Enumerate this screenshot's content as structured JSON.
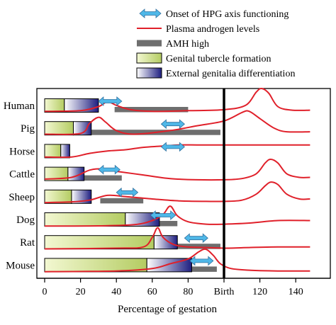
{
  "legend": [
    {
      "symbol": "double-arrow",
      "label": "Onset of HPG axis functioning"
    },
    {
      "symbol": "red-line",
      "label": "Plasma androgen levels"
    },
    {
      "symbol": "gray-bar",
      "label": "AMH high"
    },
    {
      "symbol": "green-gradient-bar",
      "label": "Genital tubercle formation"
    },
    {
      "symbol": "blue-gradient-bar",
      "label": "External genitalia differentiation"
    }
  ],
  "chart_data": {
    "type": "timeline",
    "xlabel": "Percentage of gestation",
    "x_ticks": [
      "0",
      "20",
      "40",
      "60",
      "80",
      "Birth",
      "120",
      "140"
    ],
    "x_tick_values": [
      0,
      20,
      40,
      60,
      80,
      100,
      120,
      140
    ],
    "xlim": [
      0,
      150
    ],
    "birth_line_x": 100,
    "colors": {
      "androgen": "#e0202a",
      "amh": "#6e6e6e",
      "hpg_arrow": "#4fb8e8",
      "tubercle_start": "#f3f8d2",
      "tubercle_end": "#b4cc62",
      "diff_start": "#ffffff",
      "diff_end": "#1e1e80"
    },
    "species": [
      {
        "name": "Human",
        "tubercle": [
          0,
          11
        ],
        "differentiation": [
          11,
          30
        ],
        "amh": [
          39,
          80
        ],
        "hpg_onset": [
          30,
          43
        ],
        "androgen": [
          [
            0,
            0.05
          ],
          [
            20,
            0.08
          ],
          [
            30,
            0.25
          ],
          [
            35,
            0.45
          ],
          [
            40,
            0.3
          ],
          [
            48,
            0.12
          ],
          [
            60,
            0.05
          ],
          [
            80,
            0.08
          ],
          [
            100,
            0.12
          ],
          [
            112,
            0.3
          ],
          [
            118,
            0.85
          ],
          [
            121,
            1.0
          ],
          [
            125,
            0.8
          ],
          [
            130,
            0.25
          ],
          [
            138,
            0.1
          ],
          [
            148,
            0.1
          ]
        ]
      },
      {
        "name": "Pig",
        "tubercle": [
          0,
          16
        ],
        "differentiation": [
          16,
          26
        ],
        "amh": [
          26,
          98
        ],
        "hpg_onset": [
          65,
          78
        ],
        "androgen": [
          [
            0,
            0.05
          ],
          [
            20,
            0.08
          ],
          [
            25,
            0.5
          ],
          [
            30,
            0.75
          ],
          [
            34,
            0.55
          ],
          [
            40,
            0.2
          ],
          [
            50,
            0.05
          ],
          [
            70,
            0.2
          ],
          [
            85,
            0.4
          ],
          [
            100,
            0.6
          ],
          [
            110,
            0.95
          ],
          [
            114,
            1.0
          ],
          [
            120,
            0.7
          ],
          [
            128,
            0.3
          ],
          [
            135,
            0.15
          ],
          [
            148,
            0.15
          ]
        ]
      },
      {
        "name": "Horse",
        "tubercle": [
          0,
          9
        ],
        "differentiation": [
          9,
          14
        ],
        "amh": null,
        "hpg_onset": [
          65,
          78
        ],
        "androgen": [
          [
            0,
            0.05
          ],
          [
            15,
            0.05
          ],
          [
            25,
            0.2
          ],
          [
            35,
            0.3
          ],
          [
            45,
            0.35
          ],
          [
            55,
            0.45
          ],
          [
            65,
            0.5
          ],
          [
            75,
            0.55
          ],
          [
            85,
            0.55
          ],
          [
            95,
            0.55
          ],
          [
            105,
            0.55
          ],
          [
            115,
            0.55
          ],
          [
            125,
            0.55
          ],
          [
            135,
            0.55
          ],
          [
            148,
            0.55
          ]
        ]
      },
      {
        "name": "Cattle",
        "tubercle": [
          0,
          13
        ],
        "differentiation": [
          13,
          22
        ],
        "amh": [
          22,
          43
        ],
        "hpg_onset": [
          30,
          42
        ],
        "androgen": [
          [
            0,
            0.08
          ],
          [
            15,
            0.15
          ],
          [
            25,
            0.45
          ],
          [
            32,
            0.5
          ],
          [
            40,
            0.4
          ],
          [
            55,
            0.25
          ],
          [
            70,
            0.1
          ],
          [
            85,
            0.05
          ],
          [
            100,
            0.05
          ],
          [
            110,
            0.1
          ],
          [
            118,
            0.3
          ],
          [
            123,
            0.75
          ],
          [
            126,
            0.9
          ],
          [
            130,
            0.75
          ],
          [
            135,
            0.3
          ],
          [
            142,
            0.15
          ],
          [
            148,
            0.15
          ]
        ]
      },
      {
        "name": "Sheep",
        "tubercle": [
          0,
          15
        ],
        "differentiation": [
          15,
          26
        ],
        "amh": [
          31,
          55
        ],
        "hpg_onset": [
          40,
          52
        ],
        "androgen": [
          [
            0,
            0.05
          ],
          [
            15,
            0.08
          ],
          [
            25,
            0.15
          ],
          [
            35,
            0.35
          ],
          [
            45,
            0.3
          ],
          [
            60,
            0.2
          ],
          [
            75,
            0.12
          ],
          [
            90,
            0.1
          ],
          [
            100,
            0.1
          ],
          [
            110,
            0.15
          ],
          [
            118,
            0.4
          ],
          [
            123,
            0.75
          ],
          [
            126,
            0.9
          ],
          [
            130,
            0.8
          ],
          [
            135,
            0.4
          ],
          [
            142,
            0.2
          ],
          [
            148,
            0.2
          ]
        ]
      },
      {
        "name": "Dog",
        "tubercle": [
          0,
          45
        ],
        "differentiation": [
          45,
          64
        ],
        "amh": [
          53,
          74
        ],
        "hpg_onset": [
          59,
          73
        ],
        "androgen": [
          [
            0,
            0.02
          ],
          [
            30,
            0.03
          ],
          [
            50,
            0.08
          ],
          [
            60,
            0.25
          ],
          [
            66,
            0.5
          ],
          [
            70,
            0.85
          ],
          [
            74,
            0.45
          ],
          [
            80,
            0.2
          ],
          [
            90,
            0.1
          ],
          [
            100,
            0.1
          ],
          [
            115,
            0.15
          ],
          [
            130,
            0.25
          ],
          [
            148,
            0.25
          ]
        ]
      },
      {
        "name": "Rat",
        "tubercle": [
          0,
          61
        ],
        "differentiation": [
          61,
          74
        ],
        "amh": [
          63,
          98
        ],
        "hpg_onset": [
          78,
          91
        ],
        "androgen": [
          [
            0,
            0.02
          ],
          [
            40,
            0.05
          ],
          [
            55,
            0.1
          ],
          [
            60,
            0.5
          ],
          [
            63,
            0.9
          ],
          [
            66,
            0.5
          ],
          [
            72,
            0.2
          ],
          [
            80,
            0.1
          ],
          [
            90,
            0.08
          ],
          [
            100,
            0.05
          ],
          [
            115,
            0.08
          ],
          [
            130,
            0.1
          ],
          [
            148,
            0.1
          ]
        ]
      },
      {
        "name": "Mouse",
        "tubercle": [
          0,
          57
        ],
        "differentiation": [
          57,
          82
        ],
        "amh": [
          82,
          96
        ],
        "hpg_onset": [
          81,
          94
        ],
        "androgen": [
          [
            0,
            0.02
          ],
          [
            40,
            0.05
          ],
          [
            60,
            0.15
          ],
          [
            70,
            0.35
          ],
          [
            80,
            0.55
          ],
          [
            86,
            0.85
          ],
          [
            90,
            0.95
          ],
          [
            94,
            0.7
          ],
          [
            98,
            0.35
          ],
          [
            104,
            0.15
          ],
          [
            115,
            0.08
          ],
          [
            130,
            0.05
          ],
          [
            148,
            0.05
          ]
        ]
      }
    ]
  }
}
